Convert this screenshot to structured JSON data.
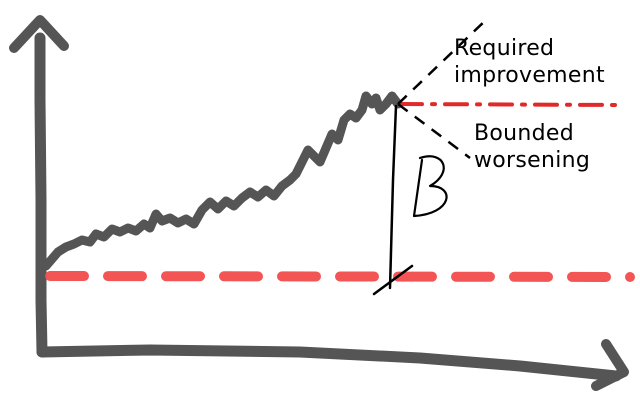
{
  "labels": {
    "required_improvement": [
      "Required",
      "improvement"
    ],
    "bounded_worsening": [
      "Bounded",
      "worsening"
    ],
    "bound_symbol": "B"
  },
  "colors": {
    "axes": "#555555",
    "curve": "#555555",
    "baseline": "#f24b4b",
    "target_line": "#e02a2a",
    "annotation_ink": "#000000",
    "background": "#ffffff"
  }
}
